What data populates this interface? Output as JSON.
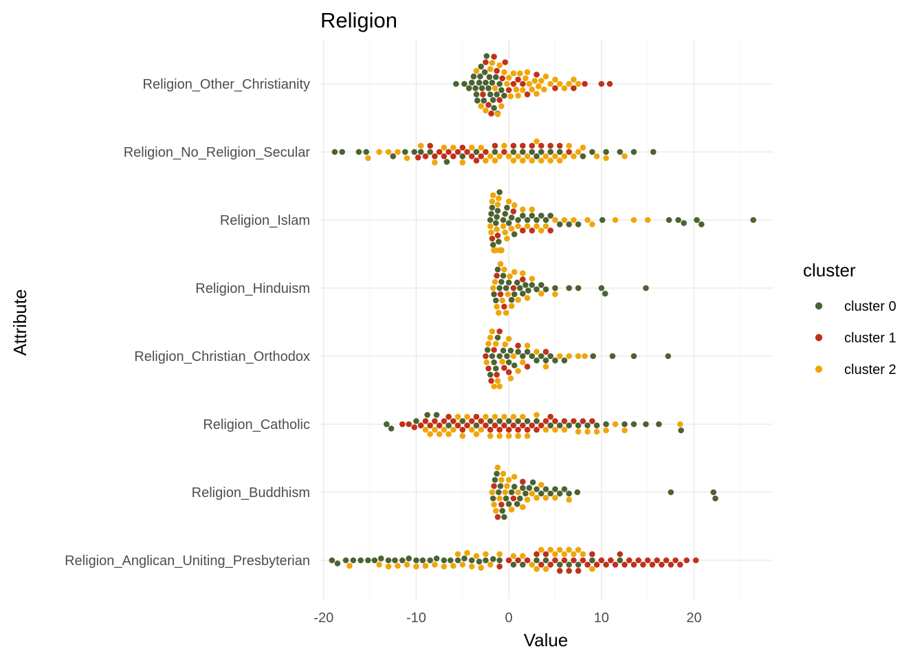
{
  "chart_data": {
    "type": "scatter",
    "subtype": "beeswarm",
    "title": "Religion",
    "xlabel": "Value",
    "ylabel": "Attribute",
    "xlim": [
      -20.5,
      28.5
    ],
    "x_ticks": [
      -20,
      -10,
      0,
      10,
      20
    ],
    "x_tick_labels": [
      "-20",
      "-10",
      "0",
      "10",
      "20"
    ],
    "grid": true,
    "legend_position": "right",
    "legend_title": "cluster",
    "categories": [
      "Religion_Other_Christianity",
      "Religion_No_Religion_Secular",
      "Religion_Islam",
      "Religion_Hinduism",
      "Religion_Christian_Orthodox",
      "Religion_Catholic",
      "Religion_Buddhism",
      "Religion_Anglican_Uniting_Presbyterian"
    ],
    "series": [
      {
        "name": "cluster 0",
        "color": "#4b6331",
        "points": {
          "Religion_Other_Christianity": [
            -5.7,
            -4.8,
            -4.3,
            -4.0,
            -3.8,
            -3.6,
            -3.4,
            -3.2,
            -3.0,
            -2.9,
            -2.7,
            -2.5,
            -2.4,
            -2.2,
            -2.0,
            -1.8,
            -1.6,
            -1.4,
            -1.2,
            -1.0,
            -0.8,
            -0.5,
            -3.5,
            -3.1,
            -2.6,
            -2.1,
            -1.7,
            -1.3
          ],
          "Religion_No_Religion_Secular": [
            -18.8,
            -18.0,
            -16.2,
            -15.4,
            -12.5,
            -11.2,
            -10.2,
            -9.5,
            -8.5,
            -6.7,
            -5.0,
            -3.5,
            -1.5,
            0.5,
            1.5,
            2.5,
            3.0,
            3.5,
            4.5,
            5.5,
            8.0,
            9.0,
            10.5,
            12.0,
            13.5,
            15.6
          ],
          "Religion_Islam": [
            -2.0,
            -1.9,
            -1.8,
            -1.7,
            -1.6,
            -1.5,
            -1.4,
            -1.3,
            -1.2,
            -1.1,
            -1.0,
            -0.8,
            -0.6,
            -0.4,
            -0.2,
            0.0,
            0.3,
            0.6,
            1.0,
            1.5,
            2.0,
            2.5,
            3.0,
            3.5,
            4.0,
            4.5,
            5.5,
            6.5,
            7.5,
            10.1,
            17.3,
            18.3,
            18.9,
            20.3,
            20.8,
            26.4
          ],
          "Religion_Hinduism": [
            -1.6,
            -1.4,
            -1.2,
            -1.0,
            -0.8,
            -0.6,
            -0.3,
            0.0,
            0.3,
            0.6,
            0.9,
            1.2,
            1.5,
            1.8,
            2.1,
            2.5,
            3.0,
            3.5,
            4.0,
            5.0,
            6.5,
            7.5,
            10.0,
            10.4,
            14.8
          ],
          "Religion_Christian_Orthodox": [
            -2.3,
            -2.0,
            -1.8,
            -1.6,
            -1.4,
            -1.2,
            -1.0,
            -0.6,
            -0.2,
            0.0,
            0.2,
            0.6,
            1.0,
            1.5,
            2.0,
            2.5,
            3.0,
            3.5,
            4.0,
            4.5,
            5.0,
            6.0,
            9.1,
            11.2,
            13.5,
            17.2
          ],
          "Religion_Catholic": [
            -13.2,
            -12.7,
            -10.0,
            -8.8,
            -7.8,
            -6.5,
            -5.0,
            -3.5,
            -2.0,
            -1.0,
            0.0,
            1.0,
            2.0,
            3.0,
            4.5,
            5.5,
            6.5,
            7.5,
            8.5,
            9.5,
            10.5,
            12.5,
            13.5,
            14.8,
            16.2,
            18.6
          ],
          "Religion_Buddhism": [
            -1.7,
            -1.5,
            -1.3,
            -1.1,
            -0.9,
            -0.7,
            -0.5,
            -0.3,
            0.0,
            0.3,
            0.6,
            0.9,
            1.2,
            1.5,
            1.8,
            2.2,
            2.6,
            3.0,
            3.5,
            4.0,
            4.5,
            5.0,
            5.5,
            6.0,
            6.5,
            7.4,
            17.5,
            22.1,
            22.3
          ],
          "Religion_Anglican_Uniting_Presbyterian": [
            -19.1,
            -18.5,
            -17.6,
            -16.8,
            -16.0,
            -15.2,
            -14.5,
            -13.8,
            -13.0,
            -12.3,
            -11.5,
            -10.8,
            -10.0,
            -9.3,
            -8.5,
            -7.8,
            -7.0,
            -6.3,
            -5.5,
            -4.8,
            -4.0,
            -3.2,
            -2.5,
            -1.7,
            -1.0,
            0.5,
            1.5,
            3.0,
            4.0,
            5.5,
            6.5,
            7.5,
            9.0,
            12.0
          ]
        }
      },
      {
        "name": "cluster 1",
        "color": "#c0311a",
        "points": {
          "Religion_Other_Christianity": [
            -2.8,
            -2.5,
            -2.2,
            -1.9,
            -1.6,
            -1.3,
            -1.0,
            -0.7,
            -0.4,
            0.0,
            0.5,
            1.0,
            1.5,
            2.0,
            3.0,
            5.0,
            7.0,
            8.2,
            10.0,
            10.9
          ],
          "Religion_No_Religion_Secular": [
            -9.8,
            -9.0,
            -8.5,
            -8.0,
            -7.5,
            -7.0,
            -6.5,
            -6.0,
            -5.5,
            -5.0,
            -4.5,
            -4.0,
            -3.5,
            -3.0,
            -2.5,
            -1.5,
            -0.5,
            0.5,
            1.5,
            2.5,
            3.5,
            4.5,
            5.5,
            6.5
          ],
          "Religion_Islam": [
            -1.8,
            -1.5,
            -1.2,
            -0.9,
            0.5,
            1.5,
            2.5,
            4.5
          ],
          "Religion_Hinduism": [
            -1.3,
            -0.9,
            -0.5,
            0.5,
            1.5
          ],
          "Religion_Christian_Orthodox": [
            -2.5,
            -2.2,
            -1.9,
            -1.6,
            -1.3,
            -1.0,
            -0.5,
            0.0,
            1.0,
            2.0,
            4.0
          ],
          "Religion_Catholic": [
            -11.5,
            -10.8,
            -10.2,
            -9.5,
            -9.0,
            -8.5,
            -8.0,
            -7.5,
            -7.0,
            -6.5,
            -6.0,
            -5.5,
            -5.0,
            -4.5,
            -4.0,
            -3.5,
            -3.0,
            -2.5,
            -2.0,
            -1.5,
            -1.0,
            -0.5,
            0.0,
            0.5,
            1.0,
            1.5,
            2.0,
            2.5,
            3.0,
            3.5,
            4.0,
            4.5,
            5.0,
            6.0,
            7.0,
            8.0,
            9.0
          ],
          "Religion_Buddhism": [
            -1.6,
            -1.2,
            -0.8,
            0.5,
            1.5
          ],
          "Religion_Anglican_Uniting_Presbyterian": [
            -1.0,
            0.0,
            1.0,
            2.0,
            3.0,
            3.5,
            4.0,
            4.5,
            5.0,
            5.5,
            6.0,
            6.5,
            7.0,
            7.5,
            8.0,
            8.5,
            9.0,
            9.5,
            10.0,
            10.5,
            11.0,
            11.5,
            12.0,
            12.5,
            13.0,
            13.5,
            14.0,
            14.5,
            15.0,
            15.5,
            16.0,
            16.5,
            17.0,
            17.5,
            18.0,
            18.5,
            19.2,
            20.2
          ]
        }
      },
      {
        "name": "cluster 2",
        "color": "#f0a60a",
        "points": {
          "Religion_Other_Christianity": [
            -3.5,
            -3.0,
            -2.5,
            -2.0,
            -1.8,
            -1.5,
            -1.2,
            -1.0,
            -0.8,
            -0.5,
            -0.2,
            0.0,
            0.2,
            0.5,
            0.8,
            1.0,
            1.2,
            1.5,
            1.8,
            2.0,
            2.2,
            2.5,
            2.8,
            3.0,
            3.2,
            3.5,
            3.8,
            4.0,
            4.5,
            5.0,
            5.5,
            6.0,
            6.5,
            7.0,
            7.5
          ],
          "Religion_No_Religion_Secular": [
            -15.2,
            -14.0,
            -13.0,
            -12.0,
            -11.0,
            -9.5,
            -8.0,
            -7.0,
            -6.0,
            -5.0,
            -4.0,
            -3.0,
            -2.5,
            -2.0,
            -1.5,
            -1.0,
            -0.5,
            0.0,
            0.5,
            1.0,
            1.5,
            2.0,
            2.5,
            3.0,
            3.5,
            4.0,
            4.5,
            5.0,
            5.5,
            6.0,
            6.5,
            7.0,
            7.5,
            8.0,
            9.5,
            10.5,
            12.5
          ],
          "Religion_Islam": [
            -2.0,
            -1.9,
            -1.8,
            -1.7,
            -1.6,
            -1.5,
            -1.4,
            -1.3,
            -1.2,
            -1.1,
            -1.0,
            -0.9,
            -0.8,
            -0.6,
            -0.4,
            -0.2,
            0.0,
            0.3,
            0.6,
            1.0,
            1.5,
            2.0,
            2.5,
            3.0,
            3.5,
            4.0,
            5.0,
            6.0,
            7.0,
            8.5,
            9.0,
            11.5,
            13.5,
            15.0
          ],
          "Religion_Hinduism": [
            -1.7,
            -1.5,
            -1.3,
            -1.1,
            -0.9,
            -0.7,
            -0.5,
            -0.3,
            -0.1,
            0.1,
            0.3,
            0.6,
            1.0,
            1.5,
            2.0,
            2.5,
            3.5,
            5.0
          ],
          "Religion_Christian_Orthodox": [
            -2.4,
            -2.2,
            -2.0,
            -1.8,
            -1.6,
            -1.4,
            -1.2,
            -1.0,
            -0.7,
            -0.4,
            0.0,
            0.2,
            0.5,
            1.0,
            1.5,
            2.0,
            3.0,
            4.0,
            5.5,
            6.5,
            7.5,
            8.2
          ],
          "Religion_Catholic": [
            -9.0,
            -8.5,
            -8.0,
            -7.5,
            -7.0,
            -6.5,
            -6.0,
            -5.5,
            -5.0,
            -4.5,
            -4.0,
            -3.5,
            -3.0,
            -2.5,
            -2.0,
            -1.5,
            -1.0,
            -0.5,
            0.0,
            0.5,
            1.0,
            1.5,
            2.0,
            3.0,
            4.0,
            5.0,
            6.0,
            7.5,
            8.5,
            9.5,
            10.5,
            11.5,
            12.5,
            18.5
          ],
          "Religion_Buddhism": [
            -1.8,
            -1.6,
            -1.4,
            -1.2,
            -1.0,
            -0.8,
            -0.6,
            -0.4,
            -0.2,
            0.0,
            0.3,
            0.6,
            1.0,
            1.5,
            2.0,
            2.5,
            3.0,
            3.5,
            4.0,
            5.0,
            6.5
          ],
          "Religion_Anglican_Uniting_Presbyterian": [
            -17.2,
            -14.0,
            -13.0,
            -12.0,
            -11.0,
            -10.0,
            -9.0,
            -8.0,
            -7.0,
            -6.0,
            -5.5,
            -5.0,
            -4.5,
            -4.0,
            -3.5,
            -3.0,
            -2.5,
            -2.0,
            -1.0,
            0.5,
            1.5,
            2.5,
            3.0,
            3.5,
            4.0,
            4.5,
            5.0,
            5.5,
            6.0,
            6.5,
            7.0,
            7.5,
            8.0,
            9.0
          ]
        }
      }
    ]
  }
}
